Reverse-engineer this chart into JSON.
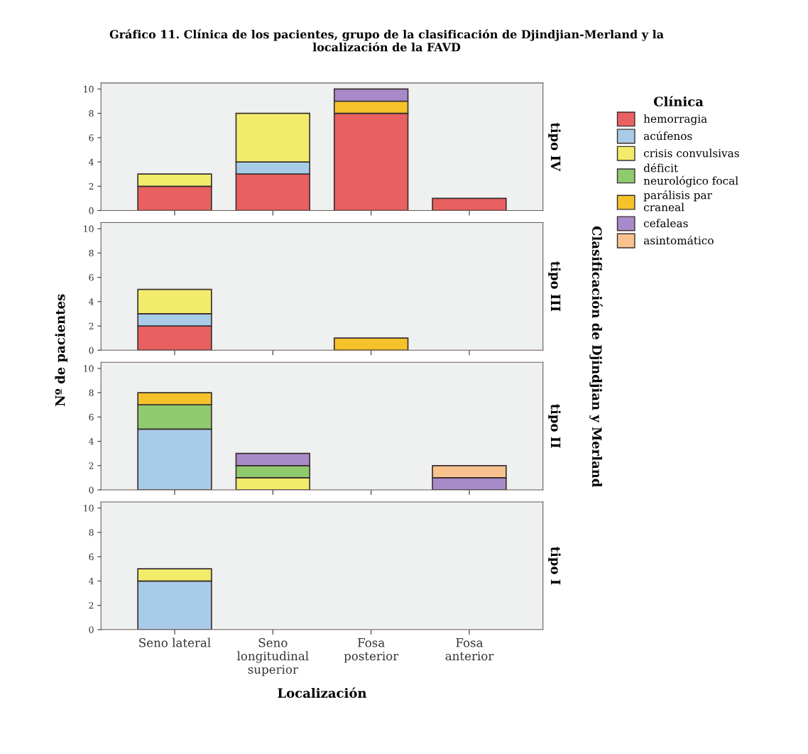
{
  "chart_data": [
    {
      "type": "bar",
      "stacked": true,
      "title": "Gráfico 11. Clínica de los pacientes, grupo de la clasificación de Djindjian-Merland y la\nlocalización de la FAVD",
      "y2label": "tipo IV",
      "legend_title": "Clínica",
      "legend": "right",
      "tick_labels": "y",
      "ylim": [
        0,
        10.5
      ],
      "yticks": [
        0,
        2,
        4,
        6,
        8,
        10
      ],
      "grid": false,
      "series": [
        {
          "name": "hemorragia",
          "color": "#e8605f",
          "values": [
            2,
            3,
            8,
            1
          ]
        },
        {
          "name": "acúfenos",
          "color": "#a8cbe8",
          "values": [
            null,
            1,
            null,
            null
          ]
        },
        {
          "name": "crisis convulsivas",
          "color": "#f2ec6a",
          "values": [
            1,
            4,
            null,
            null
          ]
        },
        {
          "name": "déficit\nneurológico focal",
          "color": "#8fca6f",
          "values": [
            null,
            null,
            null,
            null
          ]
        },
        {
          "name": "parálisis par\ncraneal",
          "color": "#f5c22a",
          "values": [
            null,
            null,
            1,
            null
          ]
        },
        {
          "name": "cefaleas",
          "color": "#a88ac8",
          "values": [
            null,
            null,
            1,
            null
          ]
        },
        {
          "name": "asintomático",
          "color": "#f8c28f",
          "values": [
            null,
            null,
            null,
            null
          ]
        }
      ]
    },
    {
      "type": "bar",
      "stacked": true,
      "ylabel": "Nº de pacientes",
      "y2label": "tipo III",
      "annotations": [
        "Clasificación de Djindjian y Merland"
      ],
      "tick_labels": "y",
      "ylim": [
        0,
        10.5
      ],
      "yticks": [
        0,
        2,
        4,
        6,
        8,
        10
      ],
      "grid": false,
      "series": [
        {
          "color": "#e8605f",
          "values": [
            2,
            null,
            null,
            null
          ]
        },
        {
          "color": "#a8cbe8",
          "values": [
            1,
            null,
            null,
            null
          ]
        },
        {
          "color": "#f2ec6a",
          "values": [
            2,
            null,
            null,
            null
          ]
        },
        {
          "color": "#f5c22a",
          "values": [
            null,
            null,
            1,
            null
          ]
        }
      ]
    },
    {
      "type": "bar",
      "stacked": true,
      "y2label": "tipo II",
      "tick_labels": "y",
      "ylim": [
        0,
        10.5
      ],
      "yticks": [
        0,
        2,
        4,
        6,
        8,
        10
      ],
      "grid": false,
      "series": [
        {
          "color": "#a8cbe8",
          "values": [
            5,
            null,
            null,
            null
          ]
        },
        {
          "color": "#f2ec6a",
          "values": [
            null,
            1,
            null,
            null
          ]
        },
        {
          "color": "#8fca6f",
          "values": [
            2,
            1,
            null,
            null
          ]
        },
        {
          "color": "#f5c22a",
          "values": [
            1,
            null,
            null,
            null
          ]
        },
        {
          "color": "#a88ac8",
          "values": [
            null,
            1,
            null,
            1
          ]
        },
        {
          "color": "#f8c28f",
          "values": [
            null,
            null,
            null,
            1
          ]
        }
      ]
    },
    {
      "type": "bar",
      "stacked": true,
      "y2label": "tipo I",
      "xlabel": "Localización",
      "ylim": [
        0,
        10.5
      ],
      "yticks": [
        0,
        2,
        4,
        6,
        8,
        10
      ],
      "grid": false,
      "categories": [
        "Seno lateral",
        "Seno\nlongitudinal\nsuperior",
        "Fosa\nposterior",
        "Fosa\nanterior"
      ],
      "series": [
        {
          "color": "#a8cbe8",
          "values": [
            4,
            null,
            null,
            null
          ]
        },
        {
          "color": "#f2ec6a",
          "values": [
            1,
            null,
            null,
            null
          ]
        }
      ]
    }
  ]
}
